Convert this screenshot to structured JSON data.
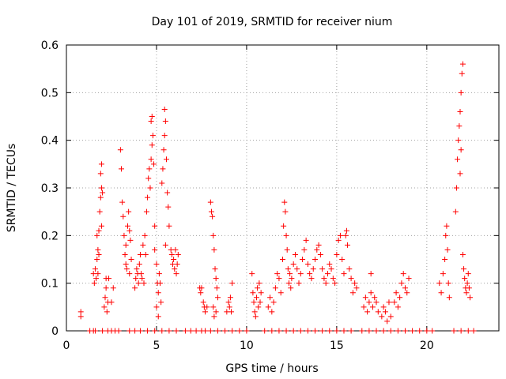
{
  "chart_data": {
    "type": "scatter",
    "title": "Day 101 of 2019, SRMTID for receiver nium",
    "xlabel": "GPS time / hours",
    "ylabel": "SRMTID / TECUs",
    "xlim": [
      0,
      24
    ],
    "ylim": [
      0,
      0.6
    ],
    "xticks": [
      0,
      5,
      10,
      15,
      20
    ],
    "yticks": [
      0,
      0.1,
      0.2,
      0.3,
      0.4,
      0.5,
      0.6
    ],
    "xtick_labels": [
      "0",
      "5",
      "10",
      "15",
      "20"
    ],
    "ytick_labels": [
      "0",
      "0.1",
      "0.2",
      "0.3",
      "0.4",
      "0.5",
      "0.6"
    ],
    "grid": true,
    "marker": "+",
    "marker_color": "#ff0000",
    "series": [
      {
        "name": "SRMTID",
        "points": [
          [
            0.8,
            0.04
          ],
          [
            0.8,
            0.03
          ],
          [
            1.3,
            0.0
          ],
          [
            1.5,
            0.0
          ],
          [
            1.6,
            0.0
          ],
          [
            1.5,
            0.12
          ],
          [
            1.55,
            0.1
          ],
          [
            1.6,
            0.13
          ],
          [
            1.65,
            0.11
          ],
          [
            1.7,
            0.15
          ],
          [
            1.75,
            0.12
          ],
          [
            1.7,
            0.2
          ],
          [
            1.8,
            0.21
          ],
          [
            1.75,
            0.17
          ],
          [
            1.8,
            0.16
          ],
          [
            1.85,
            0.25
          ],
          [
            1.9,
            0.28
          ],
          [
            1.95,
            0.3
          ],
          [
            1.9,
            0.33
          ],
          [
            1.95,
            0.35
          ],
          [
            2.0,
            0.29
          ],
          [
            1.95,
            0.22
          ],
          [
            2.1,
            0.05
          ],
          [
            2.15,
            0.07
          ],
          [
            2.2,
            0.11
          ],
          [
            2.25,
            0.04
          ],
          [
            2.3,
            0.06
          ],
          [
            2.2,
            0.09
          ],
          [
            2.35,
            0.11
          ],
          [
            2.6,
            0.09
          ],
          [
            2.5,
            0.06
          ],
          [
            2.0,
            0.0
          ],
          [
            2.3,
            0.0
          ],
          [
            2.5,
            0.0
          ],
          [
            2.7,
            0.0
          ],
          [
            2.9,
            0.0
          ],
          [
            3.0,
            0.38
          ],
          [
            3.05,
            0.34
          ],
          [
            3.1,
            0.27
          ],
          [
            3.15,
            0.24
          ],
          [
            3.2,
            0.2
          ],
          [
            3.25,
            0.16
          ],
          [
            3.3,
            0.14
          ],
          [
            3.35,
            0.13
          ],
          [
            3.3,
            0.18
          ],
          [
            3.4,
            0.22
          ],
          [
            3.45,
            0.25
          ],
          [
            3.5,
            0.21
          ],
          [
            3.55,
            0.19
          ],
          [
            3.6,
            0.15
          ],
          [
            3.5,
            0.12
          ],
          [
            3.8,
            0.09
          ],
          [
            3.85,
            0.11
          ],
          [
            3.9,
            0.13
          ],
          [
            3.95,
            0.12
          ],
          [
            4.0,
            0.1
          ],
          [
            4.05,
            0.14
          ],
          [
            4.1,
            0.16
          ],
          [
            4.15,
            0.12
          ],
          [
            4.2,
            0.11
          ],
          [
            4.3,
            0.1
          ],
          [
            4.25,
            0.18
          ],
          [
            4.35,
            0.2
          ],
          [
            4.4,
            0.16
          ],
          [
            4.45,
            0.25
          ],
          [
            4.5,
            0.28
          ],
          [
            4.55,
            0.32
          ],
          [
            4.6,
            0.34
          ],
          [
            4.65,
            0.3
          ],
          [
            4.7,
            0.36
          ],
          [
            4.75,
            0.39
          ],
          [
            4.8,
            0.41
          ],
          [
            4.7,
            0.44
          ],
          [
            4.75,
            0.45
          ],
          [
            4.85,
            0.35
          ],
          [
            4.9,
            0.22
          ],
          [
            4.9,
            0.17
          ],
          [
            5.0,
            0.14
          ],
          [
            5.05,
            0.1
          ],
          [
            5.1,
            0.08
          ],
          [
            5.15,
            0.12
          ],
          [
            5.2,
            0.1
          ],
          [
            5.25,
            0.06
          ],
          [
            5.0,
            0.05
          ],
          [
            5.1,
            0.03
          ],
          [
            5.3,
            0.31
          ],
          [
            5.35,
            0.34
          ],
          [
            5.4,
            0.38
          ],
          [
            5.45,
            0.41
          ],
          [
            5.5,
            0.44
          ],
          [
            5.45,
            0.465
          ],
          [
            5.55,
            0.36
          ],
          [
            5.6,
            0.29
          ],
          [
            5.65,
            0.26
          ],
          [
            5.7,
            0.22
          ],
          [
            5.5,
            0.18
          ],
          [
            5.8,
            0.17
          ],
          [
            5.85,
            0.16
          ],
          [
            5.9,
            0.14
          ],
          [
            5.95,
            0.15
          ],
          [
            6.0,
            0.13
          ],
          [
            6.05,
            0.17
          ],
          [
            6.1,
            0.12
          ],
          [
            6.15,
            0.14
          ],
          [
            6.2,
            0.16
          ],
          [
            3.5,
            0.0
          ],
          [
            3.8,
            0.0
          ],
          [
            4.1,
            0.0
          ],
          [
            4.5,
            0.0
          ],
          [
            4.9,
            0.0
          ],
          [
            5.3,
            0.0
          ],
          [
            5.7,
            0.0
          ],
          [
            6.1,
            0.0
          ],
          [
            6.6,
            0.0
          ],
          [
            6.9,
            0.0
          ],
          [
            7.2,
            0.0
          ],
          [
            7.5,
            0.0
          ],
          [
            7.7,
            0.0
          ],
          [
            7.4,
            0.09
          ],
          [
            7.45,
            0.08
          ],
          [
            7.5,
            0.09
          ],
          [
            7.6,
            0.06
          ],
          [
            7.65,
            0.05
          ],
          [
            7.7,
            0.04
          ],
          [
            7.8,
            0.05
          ],
          [
            8.0,
            0.27
          ],
          [
            8.05,
            0.25
          ],
          [
            8.1,
            0.24
          ],
          [
            8.15,
            0.2
          ],
          [
            8.2,
            0.17
          ],
          [
            8.25,
            0.13
          ],
          [
            8.3,
            0.11
          ],
          [
            8.35,
            0.09
          ],
          [
            8.4,
            0.07
          ],
          [
            8.3,
            0.04
          ],
          [
            8.2,
            0.03
          ],
          [
            8.15,
            0.05
          ],
          [
            8.9,
            0.04
          ],
          [
            9.0,
            0.06
          ],
          [
            9.05,
            0.05
          ],
          [
            9.1,
            0.07
          ],
          [
            9.15,
            0.04
          ],
          [
            9.2,
            0.1
          ],
          [
            8.0,
            0.0
          ],
          [
            8.4,
            0.0
          ],
          [
            8.8,
            0.0
          ],
          [
            9.2,
            0.0
          ],
          [
            9.6,
            0.0
          ],
          [
            10.0,
            0.0
          ],
          [
            10.3,
            0.12
          ],
          [
            10.35,
            0.08
          ],
          [
            10.4,
            0.06
          ],
          [
            10.45,
            0.04
          ],
          [
            10.5,
            0.03
          ],
          [
            10.55,
            0.07
          ],
          [
            10.6,
            0.09
          ],
          [
            10.65,
            0.05
          ],
          [
            10.7,
            0.1
          ],
          [
            10.75,
            0.06
          ],
          [
            10.8,
            0.08
          ],
          [
            11.2,
            0.05
          ],
          [
            11.3,
            0.07
          ],
          [
            11.4,
            0.04
          ],
          [
            11.5,
            0.06
          ],
          [
            11.6,
            0.09
          ],
          [
            11.7,
            0.12
          ],
          [
            11.8,
            0.11
          ],
          [
            11.9,
            0.08
          ],
          [
            12.0,
            0.15
          ],
          [
            12.05,
            0.22
          ],
          [
            12.1,
            0.27
          ],
          [
            12.15,
            0.25
          ],
          [
            12.2,
            0.2
          ],
          [
            12.25,
            0.17
          ],
          [
            12.3,
            0.13
          ],
          [
            12.35,
            0.1
          ],
          [
            12.4,
            0.12
          ],
          [
            12.45,
            0.09
          ],
          [
            12.5,
            0.11
          ],
          [
            12.6,
            0.14
          ],
          [
            12.7,
            0.16
          ],
          [
            12.8,
            0.13
          ],
          [
            12.9,
            0.1
          ],
          [
            13.0,
            0.12
          ],
          [
            13.1,
            0.15
          ],
          [
            13.2,
            0.17
          ],
          [
            13.3,
            0.19
          ],
          [
            13.4,
            0.14
          ],
          [
            13.5,
            0.12
          ],
          [
            13.6,
            0.11
          ],
          [
            13.7,
            0.13
          ],
          [
            13.8,
            0.15
          ],
          [
            13.9,
            0.17
          ],
          [
            14.0,
            0.18
          ],
          [
            14.1,
            0.16
          ],
          [
            14.2,
            0.13
          ],
          [
            14.3,
            0.11
          ],
          [
            14.4,
            0.1
          ],
          [
            14.5,
            0.12
          ],
          [
            14.6,
            0.14
          ],
          [
            14.7,
            0.13
          ],
          [
            14.8,
            0.11
          ],
          [
            14.9,
            0.1
          ],
          [
            15.0,
            0.16
          ],
          [
            15.1,
            0.19
          ],
          [
            15.2,
            0.2
          ],
          [
            15.3,
            0.15
          ],
          [
            15.4,
            0.12
          ],
          [
            15.5,
            0.2
          ],
          [
            15.55,
            0.21
          ],
          [
            15.6,
            0.18
          ],
          [
            15.7,
            0.13
          ],
          [
            15.8,
            0.11
          ],
          [
            15.9,
            0.08
          ],
          [
            16.0,
            0.1
          ],
          [
            16.1,
            0.09
          ],
          [
            11.0,
            0.0
          ],
          [
            11.4,
            0.0
          ],
          [
            11.8,
            0.0
          ],
          [
            12.2,
            0.0
          ],
          [
            12.6,
            0.0
          ],
          [
            13.0,
            0.0
          ],
          [
            13.4,
            0.0
          ],
          [
            13.8,
            0.0
          ],
          [
            14.2,
            0.0
          ],
          [
            14.6,
            0.0
          ],
          [
            15.0,
            0.0
          ],
          [
            15.4,
            0.0
          ],
          [
            15.8,
            0.0
          ],
          [
            16.5,
            0.05
          ],
          [
            16.6,
            0.07
          ],
          [
            16.7,
            0.04
          ],
          [
            16.8,
            0.06
          ],
          [
            16.9,
            0.08
          ],
          [
            17.0,
            0.05
          ],
          [
            17.1,
            0.07
          ],
          [
            17.2,
            0.06
          ],
          [
            17.3,
            0.04
          ],
          [
            16.9,
            0.12
          ],
          [
            17.5,
            0.03
          ],
          [
            17.6,
            0.05
          ],
          [
            17.7,
            0.04
          ],
          [
            17.8,
            0.02
          ],
          [
            17.9,
            0.06
          ],
          [
            18.0,
            0.03
          ],
          [
            18.2,
            0.06
          ],
          [
            18.3,
            0.08
          ],
          [
            18.4,
            0.05
          ],
          [
            18.5,
            0.07
          ],
          [
            18.6,
            0.1
          ],
          [
            18.7,
            0.12
          ],
          [
            18.8,
            0.09
          ],
          [
            18.9,
            0.08
          ],
          [
            19.0,
            0.11
          ],
          [
            16.4,
            0.0
          ],
          [
            16.8,
            0.0
          ],
          [
            17.2,
            0.0
          ],
          [
            17.6,
            0.0
          ],
          [
            18.0,
            0.0
          ],
          [
            18.4,
            0.0
          ],
          [
            18.8,
            0.0
          ],
          [
            19.2,
            0.0
          ],
          [
            19.6,
            0.0
          ],
          [
            20.0,
            0.0
          ],
          [
            20.3,
            0.0
          ],
          [
            20.7,
            0.1
          ],
          [
            20.8,
            0.08
          ],
          [
            20.9,
            0.12
          ],
          [
            21.0,
            0.15
          ],
          [
            21.05,
            0.2
          ],
          [
            21.1,
            0.22
          ],
          [
            21.15,
            0.17
          ],
          [
            21.2,
            0.1
          ],
          [
            21.25,
            0.07
          ],
          [
            21.6,
            0.25
          ],
          [
            21.65,
            0.3
          ],
          [
            21.7,
            0.36
          ],
          [
            21.75,
            0.4
          ],
          [
            21.8,
            0.43
          ],
          [
            21.85,
            0.46
          ],
          [
            21.9,
            0.5
          ],
          [
            21.95,
            0.54
          ],
          [
            22.0,
            0.56
          ],
          [
            21.9,
            0.38
          ],
          [
            21.85,
            0.33
          ],
          [
            22.0,
            0.16
          ],
          [
            22.05,
            0.13
          ],
          [
            22.1,
            0.11
          ],
          [
            22.15,
            0.09
          ],
          [
            22.2,
            0.08
          ],
          [
            22.25,
            0.1
          ],
          [
            22.3,
            0.12
          ],
          [
            22.35,
            0.09
          ],
          [
            22.4,
            0.07
          ],
          [
            21.5,
            0.0
          ],
          [
            21.9,
            0.0
          ],
          [
            22.3,
            0.0
          ],
          [
            22.6,
            0.0
          ]
        ]
      }
    ]
  }
}
